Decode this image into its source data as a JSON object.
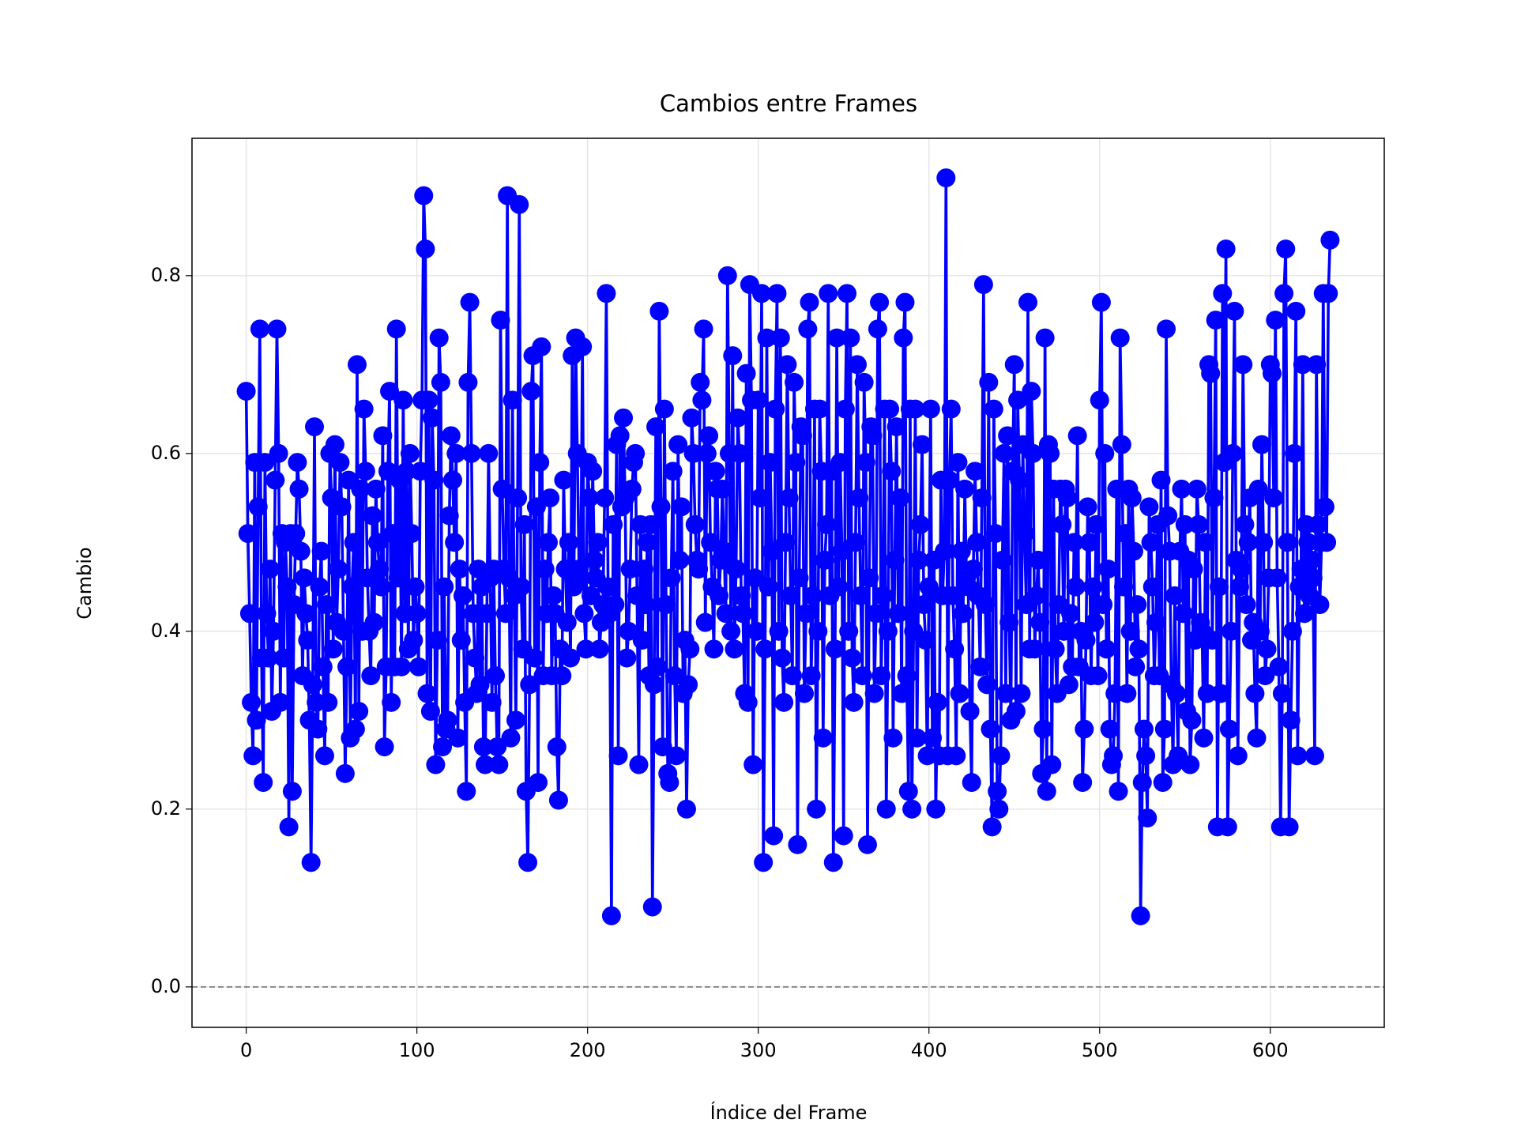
{
  "chart_data": {
    "type": "line",
    "title": "Cambios entre Frames",
    "xlabel": "Índice del Frame",
    "ylabel": "Cambio",
    "xlim": [
      -31.75,
      666.75
    ],
    "ylim": [
      -0.0455,
      0.9545
    ],
    "xticks": [
      0,
      100,
      200,
      300,
      400,
      500,
      600
    ],
    "yticks": [
      {
        "value": 0,
        "label": "0.0"
      },
      0.2,
      0.4,
      0.6,
      0.8
    ],
    "grid": true,
    "reference_line": 0,
    "x": [
      0,
      1,
      2,
      3,
      4,
      5,
      6,
      7,
      8,
      9,
      10,
      11,
      12,
      13,
      14,
      15,
      16,
      17,
      18,
      19,
      20,
      21,
      22,
      23,
      24,
      25,
      26,
      27,
      28,
      29,
      30,
      31,
      32,
      33,
      34,
      35,
      36,
      37,
      38,
      39,
      40,
      41,
      42,
      43,
      44,
      45,
      46,
      47,
      48,
      49,
      50,
      51,
      52,
      53,
      54,
      55,
      56,
      57,
      58,
      59,
      60,
      61,
      62,
      63,
      64,
      65,
      66,
      67,
      68,
      69,
      70,
      71,
      72,
      73,
      74,
      75,
      76,
      77,
      78,
      79,
      80,
      81,
      82,
      83,
      84,
      85,
      86,
      87,
      88,
      89,
      90,
      91,
      92,
      93,
      94,
      95,
      96,
      97,
      98,
      99,
      100,
      101,
      102,
      103,
      104,
      105,
      106,
      107,
      108,
      109,
      110,
      111,
      112,
      113,
      114,
      115,
      116,
      117,
      118,
      119,
      120,
      121,
      122,
      123,
      124,
      125,
      126,
      127,
      128,
      129,
      130,
      131,
      132,
      133,
      134,
      135,
      136,
      137,
      138,
      139,
      140,
      141,
      142,
      143,
      144,
      145,
      146,
      147,
      148,
      149,
      150,
      151,
      152,
      153,
      154,
      155,
      156,
      157,
      158,
      159,
      160,
      161,
      162,
      163,
      164,
      165,
      166,
      167,
      168,
      169,
      170,
      171,
      172,
      173,
      174,
      175,
      176,
      177,
      178,
      179,
      180,
      181,
      182,
      183,
      184,
      185,
      186,
      187,
      188,
      189,
      190,
      191,
      192,
      193,
      194,
      195,
      196,
      197,
      198,
      199,
      200,
      201,
      202,
      203,
      204,
      205,
      206,
      207,
      208,
      209,
      210,
      211,
      212,
      213,
      214,
      215,
      216,
      217,
      218,
      219,
      220,
      221,
      222,
      223,
      224,
      225,
      226,
      227,
      228,
      229,
      230,
      231,
      232,
      233,
      234,
      235,
      236,
      237,
      238,
      239,
      240,
      241,
      242,
      243,
      244,
      245,
      246,
      247,
      248,
      249,
      250,
      251,
      252,
      253,
      254,
      255,
      256,
      257,
      258,
      259,
      260,
      261,
      262,
      263,
      264,
      265,
      266,
      267,
      268,
      269,
      270,
      271,
      272,
      273,
      274,
      275,
      276,
      277,
      278,
      279,
      280,
      281,
      282,
      283,
      284,
      285,
      286,
      287,
      288,
      289,
      290,
      291,
      292,
      293,
      294,
      295,
      296,
      297,
      298,
      299,
      300,
      301,
      302,
      303,
      304,
      305,
      306,
      307,
      308,
      309,
      310,
      311,
      312,
      313,
      314,
      315,
      316,
      317,
      318,
      319,
      320,
      321,
      322,
      323,
      324,
      325,
      326,
      327,
      328,
      329,
      330,
      331,
      332,
      333,
      334,
      335,
      336,
      337,
      338,
      339,
      340,
      341,
      342,
      343,
      344,
      345,
      346,
      347,
      348,
      349,
      350,
      351,
      352,
      353,
      354,
      355,
      356,
      357,
      358,
      359,
      360,
      361,
      362,
      363,
      364,
      365,
      366,
      367,
      368,
      369,
      370,
      371,
      372,
      373,
      374,
      375,
      376,
      377,
      378,
      379,
      380,
      381,
      382,
      383,
      384,
      385,
      386,
      387,
      388,
      389,
      390,
      391,
      392,
      393,
      394,
      395,
      396,
      397,
      398,
      399,
      400,
      401,
      402,
      403,
      404,
      405,
      406,
      407,
      408,
      409,
      410,
      411,
      412,
      413,
      414,
      415,
      416,
      417,
      418,
      419,
      420,
      421,
      422,
      423,
      424,
      425,
      426,
      427,
      428,
      429,
      430,
      431,
      432,
      433,
      434,
      435,
      436,
      437,
      438,
      439,
      440,
      441,
      442,
      443,
      444,
      445,
      446,
      447,
      448,
      449,
      450,
      451,
      452,
      453,
      454,
      455,
      456,
      457,
      458,
      459,
      460,
      461,
      462,
      463,
      464,
      465,
      466,
      467,
      468,
      469,
      470,
      471,
      472,
      473,
      474,
      475,
      476,
      477,
      478,
      479,
      480,
      481,
      482,
      483,
      484,
      485,
      486,
      487,
      488,
      489,
      490,
      491,
      492,
      493,
      494,
      495,
      496,
      497,
      498,
      499,
      500,
      501,
      502,
      503,
      504,
      505,
      506,
      507,
      508,
      509,
      510,
      511,
      512,
      513,
      514,
      515,
      516,
      517,
      518,
      519,
      520,
      521,
      522,
      523,
      524,
      525,
      526,
      527,
      528,
      529,
      530,
      531,
      532,
      533,
      534,
      535,
      536,
      537,
      538,
      539,
      540,
      541,
      542,
      543,
      544,
      545,
      546,
      547,
      548,
      549,
      550,
      551,
      552,
      553,
      554,
      555,
      556,
      557,
      558,
      559,
      560,
      561,
      562,
      563,
      564,
      565,
      566,
      567,
      568,
      569,
      570,
      571,
      572,
      573,
      574,
      575,
      576,
      577,
      578,
      579,
      580,
      581,
      582,
      583,
      584,
      585,
      586,
      587,
      588,
      589,
      590,
      591,
      592,
      593,
      594,
      595,
      596,
      597,
      598,
      599,
      600,
      601,
      602,
      603,
      604,
      605,
      606,
      607,
      608,
      609,
      610,
      611,
      612,
      613,
      614,
      615,
      616,
      617,
      618,
      619,
      620,
      621,
      622,
      623,
      624,
      625,
      626,
      627,
      628,
      629,
      630,
      631,
      632,
      633,
      634,
      635
    ],
    "series": [
      {
        "color": "#0000ff",
        "values": [
          0.67,
          0.51,
          0.42,
          0.32,
          0.26,
          0.59,
          0.3,
          0.54,
          0.74,
          0.37,
          0.23,
          0.59,
          0.42,
          0.37,
          0.47,
          0.31,
          0.4,
          0.57,
          0.74,
          0.6,
          0.32,
          0.51,
          0.37,
          0.5,
          0.45,
          0.18,
          0.51,
          0.22,
          0.43,
          0.51,
          0.59,
          0.56,
          0.49,
          0.35,
          0.46,
          0.42,
          0.39,
          0.3,
          0.14,
          0.34,
          0.63,
          0.32,
          0.29,
          0.45,
          0.49,
          0.36,
          0.26,
          0.43,
          0.32,
          0.6,
          0.55,
          0.38,
          0.61,
          0.41,
          0.47,
          0.59,
          0.54,
          0.4,
          0.24,
          0.36,
          0.57,
          0.28,
          0.45,
          0.5,
          0.29,
          0.7,
          0.31,
          0.56,
          0.4,
          0.65,
          0.58,
          0.46,
          0.4,
          0.35,
          0.53,
          0.41,
          0.56,
          0.5,
          0.47,
          0.45,
          0.62,
          0.27,
          0.36,
          0.58,
          0.67,
          0.32,
          0.51,
          0.36,
          0.74,
          0.46,
          0.57,
          0.36,
          0.66,
          0.42,
          0.58,
          0.38,
          0.6,
          0.51,
          0.39,
          0.45,
          0.42,
          0.36,
          0.58,
          0.66,
          0.89,
          0.83,
          0.33,
          0.66,
          0.31,
          0.64,
          0.57,
          0.25,
          0.39,
          0.73,
          0.68,
          0.27,
          0.45,
          0.29,
          0.3,
          0.53,
          0.62,
          0.57,
          0.5,
          0.6,
          0.28,
          0.47,
          0.39,
          0.44,
          0.32,
          0.22,
          0.68,
          0.77,
          0.6,
          0.42,
          0.37,
          0.33,
          0.47,
          0.34,
          0.45,
          0.27,
          0.25,
          0.42,
          0.6,
          0.46,
          0.32,
          0.47,
          0.35,
          0.27,
          0.25,
          0.75,
          0.56,
          0.47,
          0.42,
          0.89,
          0.46,
          0.28,
          0.66,
          0.44,
          0.3,
          0.55,
          0.88,
          0.45,
          0.38,
          0.52,
          0.22,
          0.14,
          0.34,
          0.67,
          0.71,
          0.37,
          0.54,
          0.23,
          0.59,
          0.72,
          0.35,
          0.47,
          0.42,
          0.5,
          0.55,
          0.35,
          0.44,
          0.42,
          0.27,
          0.21,
          0.38,
          0.35,
          0.57,
          0.47,
          0.41,
          0.5,
          0.37,
          0.71,
          0.45,
          0.73,
          0.6,
          0.47,
          0.46,
          0.72,
          0.42,
          0.38,
          0.59,
          0.55,
          0.44,
          0.58,
          0.48,
          0.46,
          0.5,
          0.38,
          0.41,
          0.43,
          0.55,
          0.78,
          0.45,
          0.42,
          0.08,
          0.52,
          0.43,
          0.61,
          0.26,
          0.62,
          0.54,
          0.64,
          0.55,
          0.37,
          0.4,
          0.47,
          0.56,
          0.59,
          0.6,
          0.44,
          0.25,
          0.52,
          0.39,
          0.47,
          0.43,
          0.5,
          0.35,
          0.52,
          0.09,
          0.34,
          0.63,
          0.36,
          0.76,
          0.54,
          0.27,
          0.65,
          0.43,
          0.24,
          0.23,
          0.46,
          0.58,
          0.35,
          0.26,
          0.61,
          0.48,
          0.54,
          0.33,
          0.39,
          0.2,
          0.34,
          0.38,
          0.64,
          0.6,
          0.52,
          0.48,
          0.47,
          0.68,
          0.66,
          0.74,
          0.41,
          0.6,
          0.62,
          0.5,
          0.45,
          0.38,
          0.58,
          0.56,
          0.44,
          0.48,
          0.56,
          0.49,
          0.42,
          0.8,
          0.6,
          0.4,
          0.71,
          0.38,
          0.47,
          0.64,
          0.6,
          0.44,
          0.42,
          0.33,
          0.69,
          0.32,
          0.79,
          0.66,
          0.25,
          0.46,
          0.4,
          0.66,
          0.55,
          0.78,
          0.14,
          0.38,
          0.73,
          0.45,
          0.59,
          0.49,
          0.17,
          0.65,
          0.78,
          0.4,
          0.73,
          0.37,
          0.32,
          0.5,
          0.7,
          0.55,
          0.44,
          0.35,
          0.68,
          0.59,
          0.16,
          0.46,
          0.63,
          0.62,
          0.33,
          0.42,
          0.74,
          0.77,
          0.35,
          0.44,
          0.65,
          0.2,
          0.4,
          0.65,
          0.58,
          0.28,
          0.48,
          0.52,
          0.78,
          0.44,
          0.58,
          0.14,
          0.38,
          0.73,
          0.45,
          0.59,
          0.49,
          0.17,
          0.65,
          0.78,
          0.4,
          0.73,
          0.37,
          0.32,
          0.5,
          0.7,
          0.55,
          0.44,
          0.35,
          0.68,
          0.59,
          0.16,
          0.46,
          0.63,
          0.62,
          0.33,
          0.42,
          0.74,
          0.77,
          0.35,
          0.44,
          0.65,
          0.2,
          0.4,
          0.65,
          0.58,
          0.28,
          0.48,
          0.63,
          0.42,
          0.55,
          0.33,
          0.73,
          0.77,
          0.35,
          0.22,
          0.65,
          0.2,
          0.4,
          0.65,
          0.28,
          0.48,
          0.52,
          0.61,
          0.43,
          0.39,
          0.26,
          0.45,
          0.65,
          0.28,
          0.48,
          0.2,
          0.32,
          0.26,
          0.57,
          0.44,
          0.49,
          0.91,
          0.26,
          0.57,
          0.65,
          0.44,
          0.38,
          0.26,
          0.59,
          0.33,
          0.49,
          0.42,
          0.56,
          0.46,
          0.45,
          0.31,
          0.23,
          0.47,
          0.58,
          0.5,
          0.44,
          0.36,
          0.55,
          0.79,
          0.43,
          0.34,
          0.68,
          0.29,
          0.18,
          0.65,
          0.51,
          0.22,
          0.2,
          0.26,
          0.48,
          0.6,
          0.33,
          0.62,
          0.41,
          0.3,
          0.58,
          0.7,
          0.31,
          0.66,
          0.57,
          0.33,
          0.61,
          0.51,
          0.43,
          0.77,
          0.38,
          0.67,
          0.6,
          0.38,
          0.44,
          0.48,
          0.41,
          0.24,
          0.29,
          0.73,
          0.22,
          0.61,
          0.6,
          0.25,
          0.56,
          0.38,
          0.33,
          0.43,
          0.56,
          0.52,
          0.4,
          0.56,
          0.55,
          0.34,
          0.42,
          0.36,
          0.5,
          0.45,
          0.62,
          0.36,
          0.4,
          0.23,
          0.29,
          0.39,
          0.54,
          0.5,
          0.35,
          0.45,
          0.41,
          0.52,
          0.35,
          0.66,
          0.77,
          0.43,
          0.6,
          0.38,
          0.47,
          0.29,
          0.25,
          0.26,
          0.33,
          0.56,
          0.22,
          0.73,
          0.61,
          0.45,
          0.51,
          0.33,
          0.56,
          0.4,
          0.55,
          0.49,
          0.36,
          0.43,
          0.38,
          0.08,
          0.23,
          0.29,
          0.26,
          0.19,
          0.54,
          0.5,
          0.45,
          0.35,
          0.41,
          0.52,
          0.35,
          0.57,
          0.23,
          0.29,
          0.74,
          0.53,
          0.49,
          0.34,
          0.25,
          0.44,
          0.33,
          0.26,
          0.49,
          0.56,
          0.42,
          0.52,
          0.31,
          0.48,
          0.25,
          0.3,
          0.47,
          0.39,
          0.56,
          0.52,
          0.41,
          0.4,
          0.28,
          0.5,
          0.33,
          0.7,
          0.69,
          0.39,
          0.55,
          0.75,
          0.18,
          0.45,
          0.33,
          0.78,
          0.59,
          0.83,
          0.18,
          0.29,
          0.4,
          0.6,
          0.76,
          0.48,
          0.26,
          0.45,
          0.47,
          0.7,
          0.52,
          0.43,
          0.5,
          0.55,
          0.39,
          0.41,
          0.33,
          0.28,
          0.56,
          0.4,
          0.61,
          0.5,
          0.35,
          0.38,
          0.46,
          0.7,
          0.69,
          0.55,
          0.75,
          0.46,
          0.36,
          0.18,
          0.33,
          0.78,
          0.83,
          0.5,
          0.18,
          0.3,
          0.4,
          0.6,
          0.76,
          0.26,
          0.45,
          0.47,
          0.7,
          0.42,
          0.52,
          0.5,
          0.44,
          0.48,
          0.46,
          0.26,
          0.7,
          0.52,
          0.43,
          0.5,
          0.78,
          0.54,
          0.5,
          0.78,
          0.84
        ]
      }
    ]
  }
}
